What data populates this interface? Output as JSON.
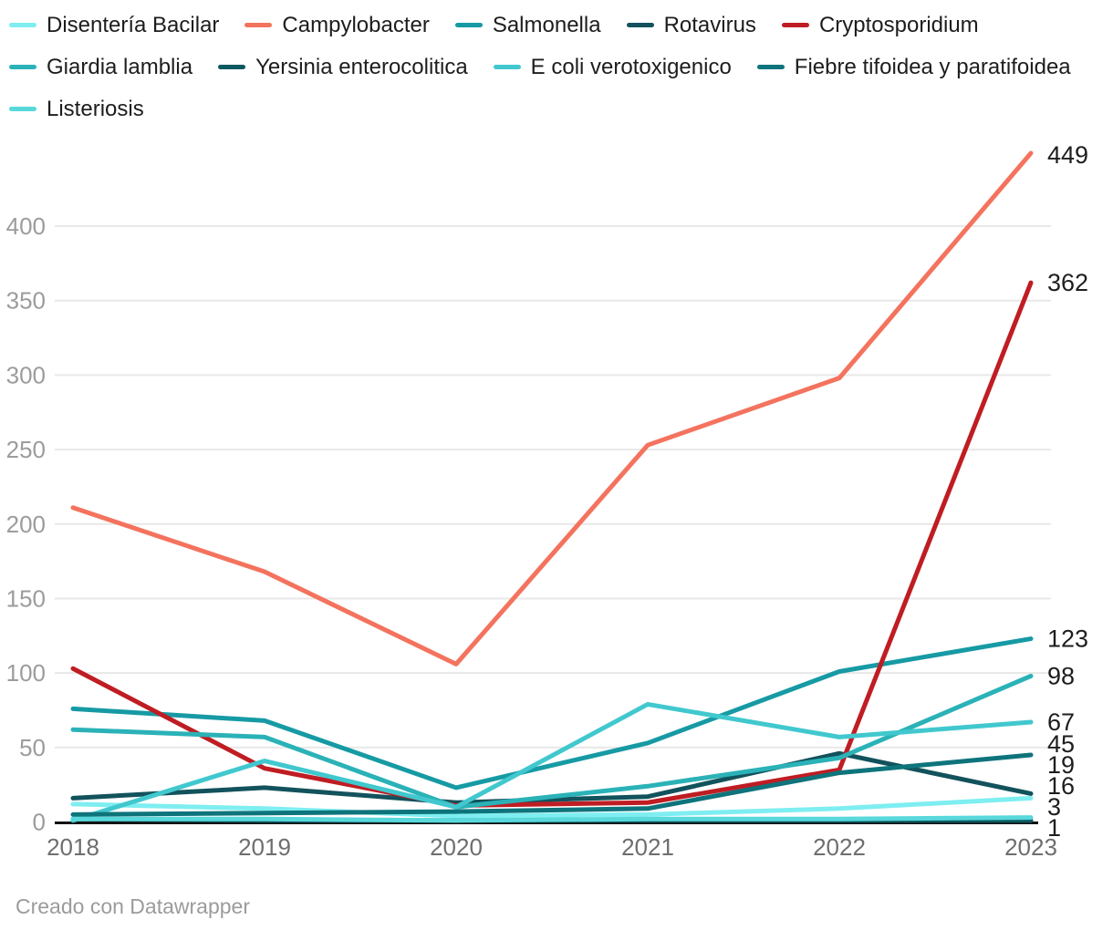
{
  "chart_data": {
    "type": "line",
    "x": [
      2018,
      2019,
      2020,
      2021,
      2022,
      2023
    ],
    "x_tick_labels": [
      "2018",
      "2019",
      "2020",
      "2021",
      "2022",
      "2023"
    ],
    "y_ticks": [
      0,
      50,
      100,
      150,
      200,
      250,
      300,
      350,
      400
    ],
    "y_tick_labels": [
      "0",
      "50",
      "100",
      "150",
      "200",
      "250",
      "300",
      "350",
      "400"
    ],
    "ylim": [
      0,
      460
    ],
    "grid": "horizontal",
    "legend_position": "top",
    "series": [
      {
        "name": "Disentería Bacilar",
        "color": "#7eeef1",
        "values": [
          12,
          9,
          4,
          5,
          9,
          16
        ],
        "end_label": "16"
      },
      {
        "name": "Campylobacter",
        "color": "#f4735e",
        "values": [
          211,
          168,
          106,
          253,
          298,
          449
        ],
        "end_label": "449"
      },
      {
        "name": "Salmonella",
        "color": "#169aa4",
        "values": [
          76,
          68,
          23,
          53,
          101,
          123
        ],
        "end_label": "123"
      },
      {
        "name": "Rotavirus",
        "color": "#12525c",
        "values": [
          16,
          23,
          13,
          17,
          46,
          19
        ],
        "end_label": "19"
      },
      {
        "name": "Cryptosporidium",
        "color": "#bf1d23",
        "values": [
          103,
          36,
          11,
          13,
          35,
          362
        ],
        "end_label": "362"
      },
      {
        "name": "Giardia lamblia",
        "color": "#2ab2b7",
        "values": [
          62,
          57,
          10,
          24,
          43,
          98
        ],
        "end_label": "98"
      },
      {
        "name": "Yersinia enterocolitica",
        "color": "#0b5860",
        "values": [
          2,
          1,
          1,
          1,
          1,
          1
        ],
        "end_label": "1"
      },
      {
        "name": "E coli verotoxigenico",
        "color": "#41c8ce",
        "values": [
          1,
          41,
          10,
          79,
          57,
          67
        ],
        "end_label": "67"
      },
      {
        "name": "Fiebre tifoidea y paratifoidea",
        "color": "#0e747c",
        "values": [
          5,
          6,
          7,
          9,
          33,
          45
        ],
        "end_label": "45"
      },
      {
        "name": "Listeriosis",
        "color": "#58d8db",
        "values": [
          2,
          2,
          1,
          2,
          2,
          3
        ],
        "end_label": "3"
      }
    ]
  },
  "footer": {
    "credit": "Creado con Datawrapper"
  }
}
